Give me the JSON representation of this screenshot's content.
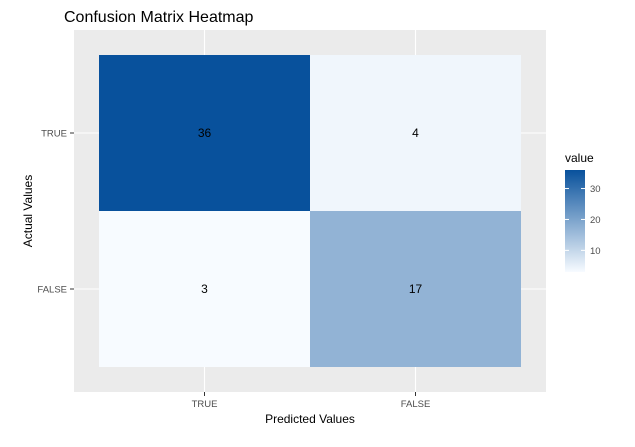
{
  "chart_data": {
    "type": "heatmap",
    "title": "Confusion Matrix Heatmap",
    "xlabel": "Predicted Values",
    "ylabel": "Actual Values",
    "x_categories": [
      "TRUE",
      "FALSE"
    ],
    "y_categories": [
      "TRUE",
      "FALSE"
    ],
    "cells": [
      {
        "actual": "TRUE",
        "predicted": "TRUE",
        "value": 36
      },
      {
        "actual": "TRUE",
        "predicted": "FALSE",
        "value": 4
      },
      {
        "actual": "FALSE",
        "predicted": "TRUE",
        "value": 3
      },
      {
        "actual": "FALSE",
        "predicted": "FALSE",
        "value": 17
      }
    ],
    "legend": {
      "title": "value",
      "breaks": [
        10,
        20,
        30
      ],
      "range": [
        3,
        36
      ],
      "low_color": "#f7fbff",
      "high_color": "#08519c",
      "placement": "right"
    },
    "grid": true,
    "panel_background": "#ebebeb"
  }
}
